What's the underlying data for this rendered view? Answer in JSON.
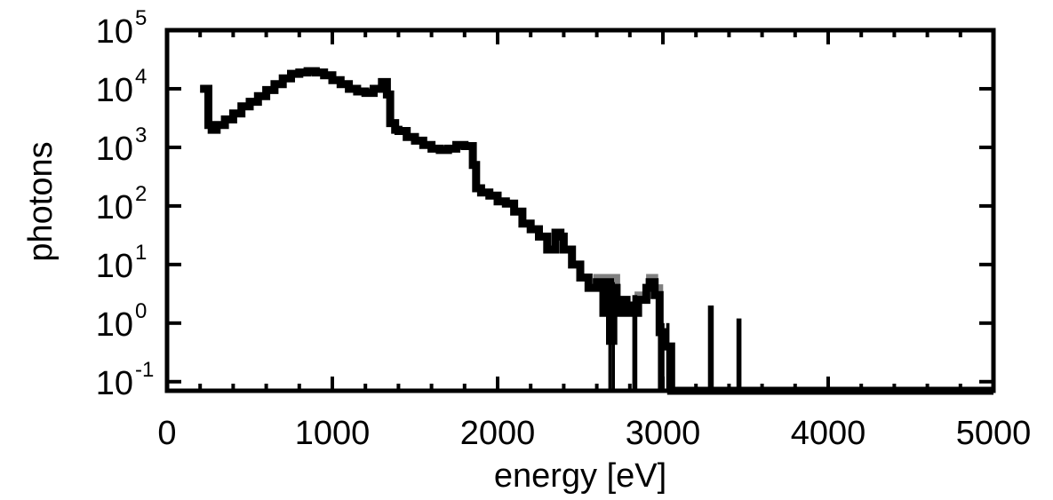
{
  "chart_data": {
    "type": "line",
    "title": "",
    "xlabel": "energy [eV]",
    "ylabel": "photons",
    "xlim": [
      0,
      5000
    ],
    "ylim": [
      0.07,
      100000
    ],
    "yscale": "log",
    "grid": false,
    "x_ticks": [
      {
        "value": 0,
        "label": "0"
      },
      {
        "value": 1000,
        "label": "1000"
      },
      {
        "value": 2000,
        "label": "2000"
      },
      {
        "value": 3000,
        "label": "3000"
      },
      {
        "value": 4000,
        "label": "4000"
      },
      {
        "value": 5000,
        "label": "5000"
      }
    ],
    "y_ticks": [
      {
        "value": 0.1,
        "base": "10",
        "exp": "-1"
      },
      {
        "value": 1,
        "base": "10",
        "exp": "0"
      },
      {
        "value": 10,
        "base": "10",
        "exp": "1"
      },
      {
        "value": 100,
        "base": "10",
        "exp": "2"
      },
      {
        "value": 1000,
        "base": "10",
        "exp": "3"
      },
      {
        "value": 10000,
        "base": "10",
        "exp": "4"
      },
      {
        "value": 100000,
        "base": "10",
        "exp": "5"
      }
    ],
    "series": [
      {
        "color": "#808080",
        "line_width": 8,
        "x": [
          200,
          250,
          270,
          300,
          350,
          400,
          450,
          500,
          550,
          600,
          650,
          700,
          750,
          800,
          850,
          900,
          950,
          1000,
          1050,
          1100,
          1150,
          1200,
          1250,
          1300,
          1330,
          1350,
          1380,
          1400,
          1450,
          1500,
          1550,
          1600,
          1650,
          1700,
          1750,
          1800,
          1850,
          1870,
          1900,
          1950,
          2000,
          2050,
          2100,
          2150,
          2200,
          2250,
          2300,
          2350,
          2380,
          2400,
          2450,
          2500,
          2550,
          2600,
          2640,
          2660,
          2680,
          2700,
          2720,
          2740,
          2760,
          2780,
          2800,
          2830,
          2850,
          2880,
          2900,
          2920,
          2950,
          2980,
          3000,
          3050,
          3100,
          3200,
          3300,
          3400,
          3500,
          4000,
          5000
        ],
        "y": [
          10000,
          2400,
          2000,
          2400,
          3000,
          3800,
          5000,
          6000,
          7500,
          9500,
          12000,
          15000,
          18000,
          19000,
          20000,
          19000,
          17000,
          14000,
          12000,
          10000,
          9000,
          8500,
          10000,
          13000,
          8000,
          2600,
          2000,
          1900,
          1500,
          1300,
          1100,
          950,
          900,
          950,
          1100,
          1050,
          500,
          200,
          170,
          150,
          120,
          110,
          80,
          50,
          40,
          30,
          18,
          35,
          30,
          18,
          10,
          6,
          4,
          6,
          1.5,
          6,
          0.5,
          6,
          2.5,
          1.5,
          2.5,
          1.5,
          2,
          1.5,
          3,
          2.5,
          4,
          6,
          4,
          0.7,
          0.4,
          0.07,
          0.07,
          0.07,
          0.07,
          0.07,
          0.07,
          0.07,
          0.07
        ]
      },
      {
        "color": "#000000",
        "line_width": 9,
        "x": [
          200,
          250,
          270,
          300,
          350,
          400,
          450,
          500,
          550,
          600,
          650,
          700,
          750,
          800,
          850,
          900,
          950,
          1000,
          1050,
          1100,
          1150,
          1200,
          1250,
          1300,
          1330,
          1350,
          1380,
          1400,
          1450,
          1500,
          1550,
          1600,
          1650,
          1700,
          1750,
          1800,
          1850,
          1870,
          1900,
          1950,
          2000,
          2050,
          2100,
          2150,
          2200,
          2250,
          2300,
          2350,
          2380,
          2400,
          2450,
          2500,
          2550,
          2600,
          2640,
          2660,
          2680,
          2700,
          2720,
          2740,
          2760,
          2780,
          2800,
          2830,
          2850,
          2880,
          2900,
          2920,
          2950,
          2980,
          3000,
          3050,
          3100,
          3200,
          3300,
          3400,
          3500,
          4000,
          5000
        ],
        "y": [
          10000,
          2400,
          2000,
          2400,
          3000,
          3800,
          5000,
          6000,
          7500,
          9500,
          12000,
          15000,
          18000,
          19000,
          20000,
          19000,
          17000,
          14000,
          12000,
          10000,
          9000,
          8500,
          10000,
          13000,
          8000,
          2600,
          2000,
          1900,
          1500,
          1300,
          1100,
          950,
          900,
          950,
          1100,
          1050,
          500,
          200,
          170,
          150,
          120,
          110,
          80,
          50,
          40,
          30,
          18,
          35,
          30,
          18,
          10,
          6,
          4,
          5,
          1.5,
          5,
          0.5,
          4,
          2.5,
          1.5,
          2.5,
          1.5,
          2,
          1.5,
          2.5,
          2.5,
          4,
          5,
          3,
          0.7,
          0.4,
          0.07,
          0.07,
          0.07,
          0.07,
          0.07,
          0.07,
          0.07,
          0.07
        ]
      }
    ],
    "spikes": [
      {
        "x": 2680,
        "y": 5,
        "width": 20
      },
      {
        "x": 2700,
        "y": 5,
        "width": 20
      },
      {
        "x": 2830,
        "y": 3,
        "width": 30
      },
      {
        "x": 2990,
        "y": 1,
        "width": 40
      },
      {
        "x": 3030,
        "y": 1,
        "width": 20
      },
      {
        "x": 3290,
        "y": 2,
        "width": 35
      },
      {
        "x": 3460,
        "y": 1.2,
        "width": 30
      }
    ]
  }
}
